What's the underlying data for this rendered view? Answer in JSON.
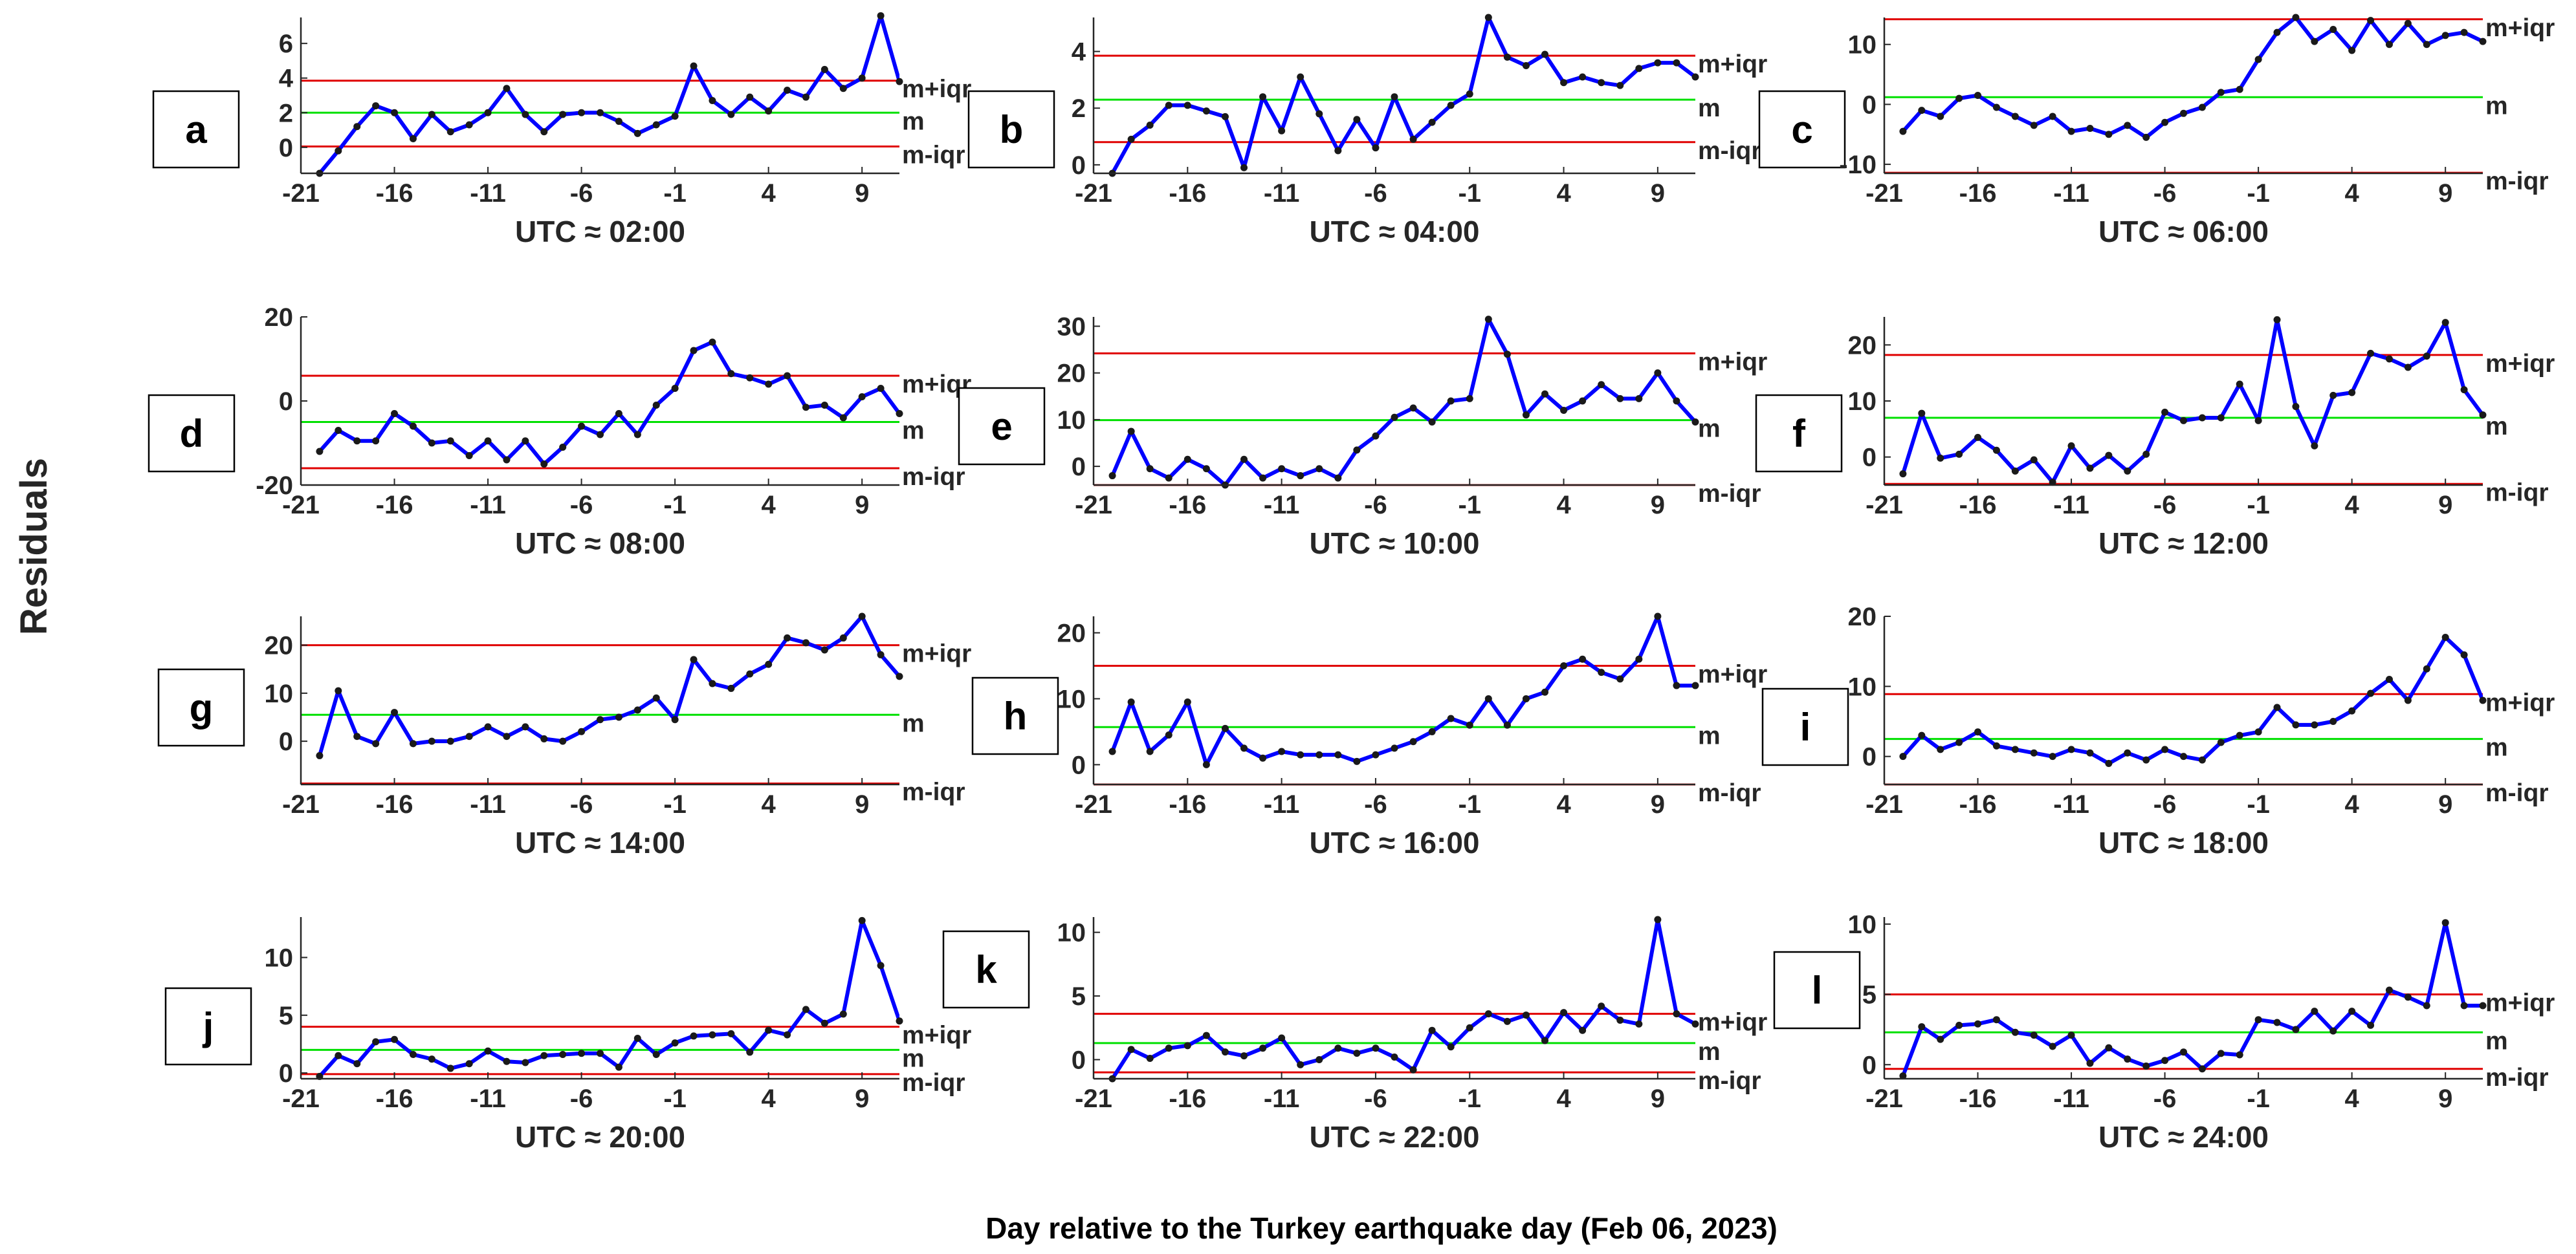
{
  "figure": {
    "ylabel": "Residuals",
    "xlabel": "Day relative to the Turkey earthquake day (Feb 06, 2023)"
  },
  "colors": {
    "series": "#0000ff",
    "marker": "#1a1a1a",
    "mean": "#00e000",
    "iqr": "#e00000",
    "axis": "#262626"
  },
  "chart_data": [
    {
      "type": "line",
      "panel": "a",
      "title": "UTC ≈ 02:00",
      "xlim": [
        -21,
        11
      ],
      "ylim": [
        -1.5,
        7.5
      ],
      "xticks": [
        -21,
        -16,
        -11,
        -6,
        -1,
        4,
        9
      ],
      "xtick_labels": [
        "-21",
        "-16",
        "-11",
        "-6",
        "-1",
        "4",
        "9"
      ],
      "yticks": [
        0,
        2,
        4,
        6
      ],
      "ytick_labels": [
        "0",
        "2",
        "4",
        "6"
      ],
      "x": [
        -20,
        -19,
        -18,
        -17,
        -16,
        -15,
        -14,
        -13,
        -12,
        -11,
        -10,
        -9,
        -8,
        -7,
        -6,
        -5,
        -4,
        -3,
        -2,
        -1,
        0,
        1,
        2,
        3,
        4,
        5,
        6,
        7,
        8,
        9,
        10,
        11
      ],
      "values": [
        -1.5,
        -0.2,
        1.2,
        2.4,
        2.0,
        0.5,
        1.9,
        0.9,
        1.3,
        2.0,
        3.4,
        1.9,
        0.9,
        1.9,
        2.0,
        2.0,
        1.5,
        0.8,
        1.3,
        1.8,
        4.7,
        2.7,
        1.9,
        2.9,
        2.1,
        3.3,
        2.9,
        4.5,
        3.4,
        4.0,
        7.6,
        3.8
      ],
      "m": 2.0,
      "m_plus_iqr": 3.85,
      "m_minus_iqr": 0.05,
      "labels": {
        "upper": "m+iqr",
        "mid": "m",
        "lower": "m-iqr"
      }
    },
    {
      "type": "line",
      "panel": "b",
      "title": "UTC ≈ 04:00",
      "xlim": [
        -21,
        11
      ],
      "ylim": [
        -0.3,
        5.2
      ],
      "xticks": [
        -21,
        -16,
        -11,
        -6,
        -1,
        4,
        9
      ],
      "xtick_labels": [
        "-21",
        "-16",
        "-11",
        "-6",
        "-1",
        "4",
        "9"
      ],
      "yticks": [
        0,
        2,
        4
      ],
      "ytick_labels": [
        "0",
        "2",
        "4"
      ],
      "x": [
        -20,
        -19,
        -18,
        -17,
        -16,
        -15,
        -14,
        -13,
        -12,
        -11,
        -10,
        -9,
        -8,
        -7,
        -6,
        -5,
        -4,
        -3,
        -2,
        -1,
        0,
        1,
        2,
        3,
        4,
        5,
        6,
        7,
        8,
        9,
        10,
        11
      ],
      "values": [
        -0.3,
        0.9,
        1.4,
        2.1,
        2.1,
        1.9,
        1.7,
        -0.1,
        2.4,
        1.2,
        3.1,
        1.8,
        0.5,
        1.6,
        0.6,
        2.4,
        0.9,
        1.5,
        2.1,
        2.5,
        5.2,
        3.8,
        3.5,
        3.9,
        2.9,
        3.1,
        2.9,
        2.8,
        3.4,
        3.6,
        3.6,
        3.1
      ],
      "m": 2.3,
      "m_plus_iqr": 3.85,
      "m_minus_iqr": 0.8,
      "labels": {
        "upper": "m+iqr",
        "mid": "m",
        "lower": "m-iqr"
      }
    },
    {
      "type": "line",
      "panel": "c",
      "title": "UTC ≈ 06:00",
      "xlim": [
        -21,
        11
      ],
      "ylim": [
        -11.5,
        14.5
      ],
      "xticks": [
        -21,
        -16,
        -11,
        -6,
        -1,
        4,
        9
      ],
      "xtick_labels": [
        "-21",
        "-16",
        "-11",
        "-6",
        "-1",
        "4",
        "9"
      ],
      "yticks": [
        -10,
        0,
        10
      ],
      "ytick_labels": [
        "-10",
        "0",
        "10"
      ],
      "x": [
        -20,
        -19,
        -18,
        -17,
        -16,
        -15,
        -14,
        -13,
        -12,
        -11,
        -10,
        -9,
        -8,
        -7,
        -6,
        -5,
        -4,
        -3,
        -2,
        -1,
        0,
        1,
        2,
        3,
        4,
        5,
        6,
        7,
        8,
        9,
        10,
        11
      ],
      "values": [
        -4.5,
        -1.0,
        -2.0,
        1.0,
        1.5,
        -0.5,
        -2.0,
        -3.5,
        -2.0,
        -4.5,
        -4.0,
        -5.0,
        -3.5,
        -5.5,
        -3.0,
        -1.5,
        -0.5,
        2.0,
        2.5,
        7.5,
        12.0,
        14.5,
        10.5,
        12.5,
        9.0,
        14.0,
        10.0,
        13.5,
        10.0,
        11.5,
        12.0,
        10.5
      ],
      "m": 1.2,
      "m_plus_iqr": 14.2,
      "m_minus_iqr": -11.4,
      "labels": {
        "upper": "m+iqr",
        "mid": "m",
        "lower": "m-iqr"
      }
    },
    {
      "type": "line",
      "panel": "d",
      "title": "UTC ≈ 08:00",
      "xlim": [
        -21,
        11
      ],
      "ylim": [
        -20,
        20
      ],
      "xticks": [
        -21,
        -16,
        -11,
        -6,
        -1,
        4,
        9
      ],
      "xtick_labels": [
        "-21",
        "-16",
        "-11",
        "-6",
        "-1",
        "4",
        "9"
      ],
      "yticks": [
        -20,
        0,
        20
      ],
      "ytick_labels": [
        "-20",
        "0",
        "20"
      ],
      "x": [
        -20,
        -19,
        -18,
        -17,
        -16,
        -15,
        -14,
        -13,
        -12,
        -11,
        -10,
        -9,
        -8,
        -7,
        -6,
        -5,
        -4,
        -3,
        -2,
        -1,
        0,
        1,
        2,
        3,
        4,
        5,
        6,
        7,
        8,
        9,
        10,
        11
      ],
      "values": [
        -12,
        -7,
        -9.5,
        -9.5,
        -3,
        -6,
        -10,
        -9.5,
        -13,
        -9.5,
        -14,
        -9.5,
        -15,
        -11,
        -6,
        -8,
        -3,
        -8,
        -1,
        3,
        12,
        14,
        6.5,
        5.5,
        4,
        6,
        -1.5,
        -1,
        -4,
        1,
        3,
        -3
      ],
      "m": -5.0,
      "m_plus_iqr": 6.0,
      "m_minus_iqr": -16.0,
      "labels": {
        "upper": "m+iqr",
        "mid": "m",
        "lower": "m-iqr"
      }
    },
    {
      "type": "line",
      "panel": "e",
      "title": "UTC ≈ 10:00",
      "xlim": [
        -21,
        11
      ],
      "ylim": [
        -4,
        32
      ],
      "xticks": [
        -21,
        -16,
        -11,
        -6,
        -1,
        4,
        9
      ],
      "xtick_labels": [
        "-21",
        "-16",
        "-11",
        "-6",
        "-1",
        "4",
        "9"
      ],
      "yticks": [
        0,
        10,
        20,
        30
      ],
      "ytick_labels": [
        "0",
        "10",
        "20",
        "30"
      ],
      "x": [
        -20,
        -19,
        -18,
        -17,
        -16,
        -15,
        -14,
        -13,
        -12,
        -11,
        -10,
        -9,
        -8,
        -7,
        -6,
        -5,
        -4,
        -3,
        -2,
        -1,
        0,
        1,
        2,
        3,
        4,
        5,
        6,
        7,
        8,
        9,
        10,
        11
      ],
      "values": [
        -2,
        7.5,
        -0.5,
        -2.5,
        1.5,
        -0.5,
        -4,
        1.5,
        -2.5,
        -0.5,
        -2,
        -0.5,
        -2.5,
        3.5,
        6.5,
        10.5,
        12.5,
        9.5,
        14,
        14.5,
        31.5,
        24,
        11,
        15.5,
        12,
        14,
        17.5,
        14.5,
        14.5,
        20,
        14,
        9.5
      ],
      "m": 9.9,
      "m_plus_iqr": 24.2,
      "m_minus_iqr": -4.0,
      "labels": {
        "upper": "m+iqr",
        "mid": "m",
        "lower": "m-iqr"
      }
    },
    {
      "type": "line",
      "panel": "f",
      "title": "UTC ≈ 12:00",
      "xlim": [
        -21,
        11
      ],
      "ylim": [
        -5,
        25
      ],
      "xticks": [
        -21,
        -16,
        -11,
        -6,
        -1,
        4,
        9
      ],
      "xtick_labels": [
        "-21",
        "-16",
        "-11",
        "-6",
        "-1",
        "4",
        "9"
      ],
      "yticks": [
        0,
        10,
        20
      ],
      "ytick_labels": [
        "0",
        "10",
        "20"
      ],
      "x": [
        -20,
        -19,
        -18,
        -17,
        -16,
        -15,
        -14,
        -13,
        -12,
        -11,
        -10,
        -9,
        -8,
        -7,
        -6,
        -5,
        -4,
        -3,
        -2,
        -1,
        0,
        1,
        2,
        3,
        4,
        5,
        6,
        7,
        8,
        9,
        10,
        11
      ],
      "values": [
        -3,
        7.8,
        -0.2,
        0.5,
        3.5,
        1.2,
        -2.5,
        -0.5,
        -4.5,
        2,
        -2,
        0.3,
        -2.5,
        0.5,
        8,
        6.5,
        7,
        7,
        13,
        6.5,
        24.5,
        9,
        2,
        11,
        11.5,
        18.5,
        17.5,
        16,
        18,
        24,
        12,
        7.5
      ],
      "m": 7.0,
      "m_plus_iqr": 18.2,
      "m_minus_iqr": -4.8,
      "labels": {
        "upper": "m+iqr",
        "mid": "m",
        "lower": "m-iqr"
      }
    },
    {
      "type": "line",
      "panel": "g",
      "title": "UTC ≈ 14:00",
      "xlim": [
        -21,
        11
      ],
      "ylim": [
        -9,
        26
      ],
      "xticks": [
        -21,
        -16,
        -11,
        -6,
        -1,
        4,
        9
      ],
      "xtick_labels": [
        "-21",
        "-16",
        "-11",
        "-6",
        "-1",
        "4",
        "9"
      ],
      "yticks": [
        0,
        10,
        20
      ],
      "ytick_labels": [
        "0",
        "10",
        "20"
      ],
      "x": [
        -20,
        -19,
        -18,
        -17,
        -16,
        -15,
        -14,
        -13,
        -12,
        -11,
        -10,
        -9,
        -8,
        -7,
        -6,
        -5,
        -4,
        -3,
        -2,
        -1,
        0,
        1,
        2,
        3,
        4,
        5,
        6,
        7,
        8,
        9,
        10,
        11
      ],
      "values": [
        -3,
        10.5,
        1,
        -0.5,
        6,
        -0.5,
        0,
        0,
        1,
        3,
        1,
        3,
        0.5,
        0,
        2,
        4.5,
        5,
        6.5,
        9,
        4.5,
        17,
        12,
        11,
        14,
        16,
        21.5,
        20.5,
        19,
        21.5,
        26,
        18,
        13.5
      ],
      "m": 5.5,
      "m_plus_iqr": 20.0,
      "m_minus_iqr": -8.8,
      "labels": {
        "upper": "m+iqr",
        "mid": "m",
        "lower": "m-iqr"
      }
    },
    {
      "type": "line",
      "panel": "h",
      "title": "UTC ≈ 16:00",
      "xlim": [
        -21,
        11
      ],
      "ylim": [
        -3,
        22.5
      ],
      "xticks": [
        -21,
        -16,
        -11,
        -6,
        -1,
        4,
        9
      ],
      "xtick_labels": [
        "-21",
        "-16",
        "-11",
        "-6",
        "-1",
        "4",
        "9"
      ],
      "yticks": [
        0,
        10,
        20
      ],
      "ytick_labels": [
        "0",
        "10",
        "20"
      ],
      "x": [
        -20,
        -19,
        -18,
        -17,
        -16,
        -15,
        -14,
        -13,
        -12,
        -11,
        -10,
        -9,
        -8,
        -7,
        -6,
        -5,
        -4,
        -3,
        -2,
        -1,
        0,
        1,
        2,
        3,
        4,
        5,
        6,
        7,
        8,
        9,
        10,
        11
      ],
      "values": [
        2,
        9.5,
        2,
        4.5,
        9.5,
        0,
        5.5,
        2.5,
        1,
        2,
        1.5,
        1.5,
        1.5,
        0.5,
        1.5,
        2.5,
        3.5,
        5,
        7,
        6,
        10,
        6,
        10,
        11,
        15,
        16,
        14,
        13,
        16,
        22.5,
        12,
        12
      ],
      "m": 5.7,
      "m_plus_iqr": 15.0,
      "m_minus_iqr": -3.0,
      "labels": {
        "upper": "m+iqr",
        "mid": "m",
        "lower": "m-iqr"
      }
    },
    {
      "type": "line",
      "panel": "i",
      "title": "UTC ≈ 18:00",
      "xlim": [
        -21,
        11
      ],
      "ylim": [
        -4,
        20
      ],
      "xticks": [
        -21,
        -16,
        -11,
        -6,
        -1,
        4,
        9
      ],
      "xtick_labels": [
        "-21",
        "-16",
        "-11",
        "-6",
        "-1",
        "4",
        "9"
      ],
      "yticks": [
        0,
        10,
        20
      ],
      "ytick_labels": [
        "0",
        "10",
        "20"
      ],
      "x": [
        -20,
        -19,
        -18,
        -17,
        -16,
        -15,
        -14,
        -13,
        -12,
        -11,
        -10,
        -9,
        -8,
        -7,
        -6,
        -5,
        -4,
        -3,
        -2,
        -1,
        0,
        1,
        2,
        3,
        4,
        5,
        6,
        7,
        8,
        9,
        10,
        11
      ],
      "values": [
        0,
        3,
        1,
        2,
        3.5,
        1.5,
        1,
        0.5,
        0,
        1,
        0.5,
        -1,
        0.5,
        -0.5,
        1,
        0,
        -0.5,
        2,
        3,
        3.5,
        7,
        4.5,
        4.5,
        5,
        6.5,
        9,
        11,
        8,
        12.5,
        17,
        14.5,
        8
      ],
      "m": 2.5,
      "m_plus_iqr": 8.9,
      "m_minus_iqr": -4.0,
      "labels": {
        "upper": "m+iqr",
        "mid": "m",
        "lower": "m-iqr"
      }
    },
    {
      "type": "line",
      "panel": "j",
      "title": "UTC ≈ 20:00",
      "xlim": [
        -21,
        11
      ],
      "ylim": [
        -0.5,
        13.5
      ],
      "xticks": [
        -21,
        -16,
        -11,
        -6,
        -1,
        4,
        9
      ],
      "xtick_labels": [
        "-21",
        "-16",
        "-11",
        "-6",
        "-1",
        "4",
        "9"
      ],
      "yticks": [
        0,
        5,
        10
      ],
      "ytick_labels": [
        "0",
        "5",
        "10"
      ],
      "x": [
        -20,
        -19,
        -18,
        -17,
        -16,
        -15,
        -14,
        -13,
        -12,
        -11,
        -10,
        -9,
        -8,
        -7,
        -6,
        -5,
        -4,
        -3,
        -2,
        -1,
        0,
        1,
        2,
        3,
        4,
        5,
        6,
        7,
        8,
        9,
        10,
        11
      ],
      "values": [
        -0.3,
        1.5,
        0.8,
        2.7,
        2.9,
        1.6,
        1.2,
        0.4,
        0.8,
        1.9,
        1.0,
        0.9,
        1.5,
        1.6,
        1.7,
        1.7,
        0.5,
        3.0,
        1.6,
        2.6,
        3.2,
        3.3,
        3.4,
        1.8,
        3.7,
        3.3,
        5.5,
        4.3,
        5.1,
        13.2,
        9.3,
        4.5
      ],
      "m": 2.0,
      "m_plus_iqr": 4.0,
      "m_minus_iqr": -0.1,
      "labels": {
        "upper": "m+iqr",
        "mid": "m",
        "lower": "m-iqr"
      }
    },
    {
      "type": "line",
      "panel": "k",
      "title": "UTC ≈ 22:00",
      "xlim": [
        -21,
        11
      ],
      "ylim": [
        -1.5,
        11.2
      ],
      "xticks": [
        -21,
        -16,
        -11,
        -6,
        -1,
        4,
        9
      ],
      "xtick_labels": [
        "-21",
        "-16",
        "-11",
        "-6",
        "-1",
        "4",
        "9"
      ],
      "yticks": [
        0,
        5,
        10
      ],
      "ytick_labels": [
        "0",
        "5",
        "10"
      ],
      "x": [
        -20,
        -19,
        -18,
        -17,
        -16,
        -15,
        -14,
        -13,
        -12,
        -11,
        -10,
        -9,
        -8,
        -7,
        -6,
        -5,
        -4,
        -3,
        -2,
        -1,
        0,
        1,
        2,
        3,
        4,
        5,
        6,
        7,
        8,
        9,
        10,
        11
      ],
      "values": [
        -1.5,
        0.8,
        0.1,
        0.9,
        1.1,
        1.9,
        0.6,
        0.3,
        0.9,
        1.7,
        -0.4,
        0.0,
        0.9,
        0.5,
        0.9,
        0.2,
        -0.8,
        2.3,
        1.0,
        2.5,
        3.6,
        3.0,
        3.5,
        1.5,
        3.7,
        2.3,
        4.2,
        3.1,
        2.8,
        11.0,
        3.6,
        2.8
      ],
      "m": 1.3,
      "m_plus_iqr": 3.6,
      "m_minus_iqr": -1.0,
      "labels": {
        "upper": "m+iqr",
        "mid": "m",
        "lower": "m-iqr"
      }
    },
    {
      "type": "line",
      "panel": "l",
      "title": "UTC ≈ 24:00",
      "xlim": [
        -21,
        11
      ],
      "ylim": [
        -1,
        10.5
      ],
      "xticks": [
        -21,
        -16,
        -11,
        -6,
        -1,
        4,
        9
      ],
      "xtick_labels": [
        "-21",
        "-16",
        "-11",
        "-6",
        "-1",
        "4",
        "9"
      ],
      "yticks": [
        0,
        5,
        10
      ],
      "ytick_labels": [
        "0",
        "5",
        "10"
      ],
      "x": [
        -20,
        -19,
        -18,
        -17,
        -16,
        -15,
        -14,
        -13,
        -12,
        -11,
        -10,
        -9,
        -8,
        -7,
        -6,
        -5,
        -4,
        -3,
        -2,
        -1,
        0,
        1,
        2,
        3,
        4,
        5,
        6,
        7,
        8,
        9,
        10,
        11
      ],
      "values": [
        -0.8,
        2.7,
        1.8,
        2.8,
        2.9,
        3.2,
        2.3,
        2.1,
        1.3,
        2.1,
        0.1,
        1.2,
        0.4,
        -0.1,
        0.3,
        0.9,
        -0.3,
        0.8,
        0.7,
        3.2,
        3.0,
        2.5,
        3.8,
        2.4,
        3.8,
        2.8,
        5.3,
        4.8,
        4.2,
        10.1,
        4.2,
        4.2
      ],
      "m": 2.3,
      "m_plus_iqr": 5.0,
      "m_minus_iqr": -0.3,
      "labels": {
        "upper": "m+iqr",
        "mid": "m",
        "lower": "m-iqr"
      }
    }
  ]
}
